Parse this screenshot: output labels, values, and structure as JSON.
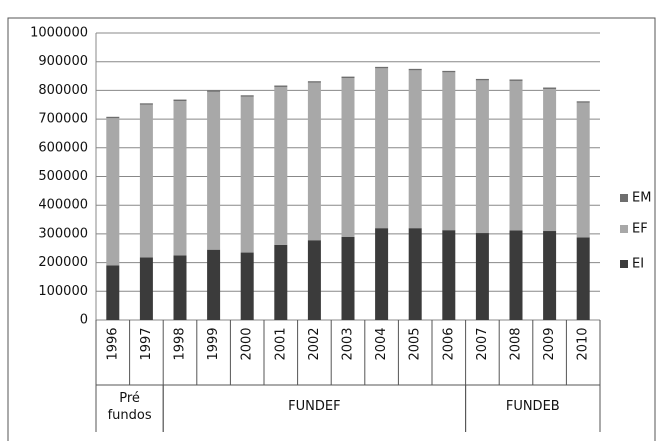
{
  "chart_data": {
    "type": "bar",
    "stacked": true,
    "categories": [
      "1996",
      "1997",
      "1998",
      "1999",
      "2000",
      "2001",
      "2002",
      "2003",
      "2004",
      "2005",
      "2006",
      "2007",
      "2008",
      "2009",
      "2010"
    ],
    "groups": [
      {
        "label": "Pré fundos",
        "count": 2
      },
      {
        "label": "FUNDEF",
        "count": 9
      },
      {
        "label": "FUNDEB",
        "count": 4
      }
    ],
    "series": [
      {
        "name": "EI",
        "color": "#3b3b3b",
        "values": [
          190000,
          218000,
          225000,
          245000,
          235000,
          262000,
          278000,
          290000,
          320000,
          320000,
          313000,
          303000,
          312000,
          310000,
          288000
        ]
      },
      {
        "name": "EF",
        "color": "#a8a8a8",
        "values": [
          513000,
          532000,
          538000,
          550000,
          543000,
          550000,
          549000,
          553000,
          557000,
          550000,
          550000,
          532000,
          521000,
          495000,
          469000
        ]
      },
      {
        "name": "EM",
        "color": "#6e6e6e",
        "values": [
          5000,
          5000,
          5000,
          5000,
          5000,
          5000,
          5000,
          5000,
          5000,
          5000,
          5000,
          5000,
          5000,
          5000,
          5000
        ]
      }
    ],
    "ylim": [
      0,
      1000000
    ],
    "yticks": [
      0,
      100000,
      200000,
      300000,
      400000,
      500000,
      600000,
      700000,
      800000,
      900000,
      1000000
    ],
    "grid": true,
    "legend": "right"
  }
}
